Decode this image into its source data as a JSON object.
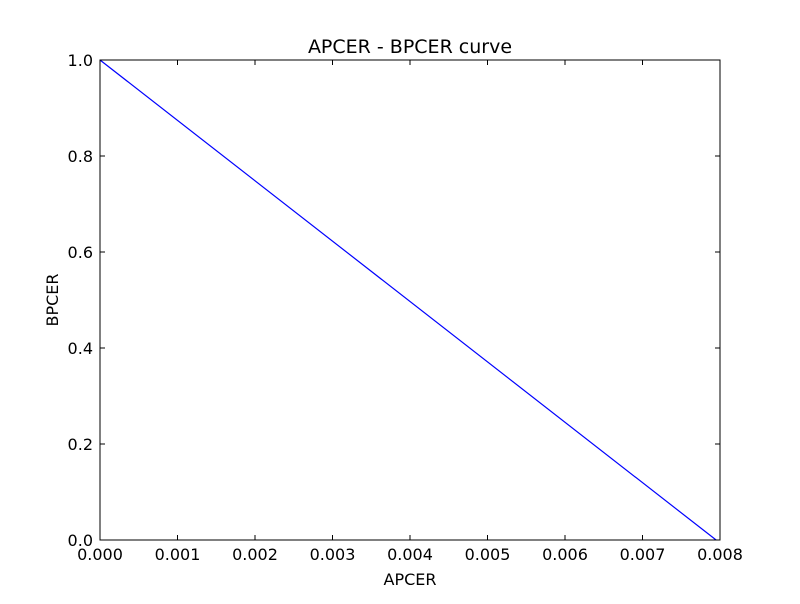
{
  "chart_data": {
    "type": "line",
    "title": "APCER - BPCER curve",
    "xlabel": "APCER",
    "ylabel": "BPCER",
    "xlim": [
      0.0,
      0.008
    ],
    "ylim": [
      0.0,
      1.0
    ],
    "x_ticks": [
      "0.000",
      "0.001",
      "0.002",
      "0.003",
      "0.004",
      "0.005",
      "0.006",
      "0.007",
      "0.008"
    ],
    "y_ticks": [
      "0.0",
      "0.2",
      "0.4",
      "0.6",
      "0.8",
      "1.0"
    ],
    "grid": false,
    "series": [
      {
        "color": "#0000ff",
        "x": [
          0.0,
          0.00795
        ],
        "y": [
          1.0,
          0.0
        ]
      }
    ]
  }
}
